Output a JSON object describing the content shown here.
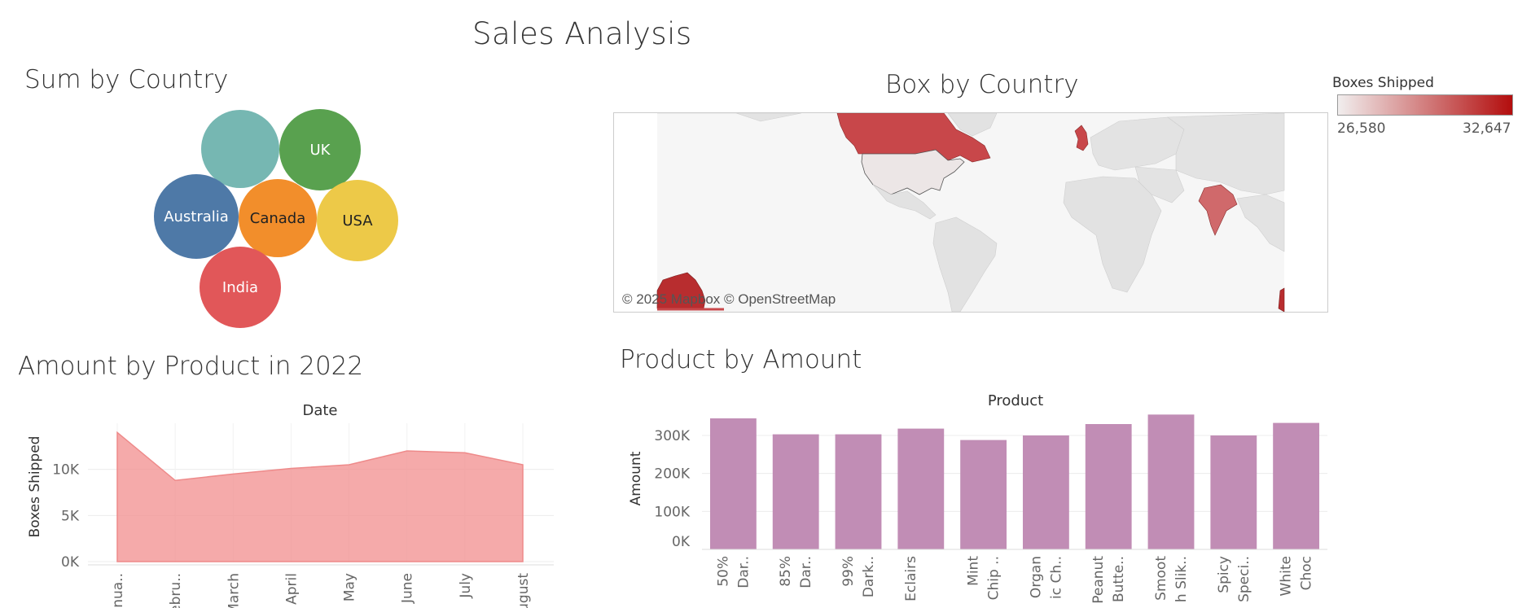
{
  "dashboard": {
    "title": "Sales Analysis"
  },
  "sheets": {
    "sum_by_country": "Sum by Country",
    "box_by_country": "Box by Country",
    "amount_by_product": "Amount by Product in 2022",
    "product_by_amount": "Product by Amount"
  },
  "legend": {
    "title": "Boxes Shipped",
    "min_label": "26,580",
    "max_label": "32,647",
    "color_low": "#f1eeee",
    "color_high": "#b30d0d"
  },
  "map": {
    "attribution": "© 2025 Mapbox © OpenStreetMap"
  },
  "chart_data": [
    {
      "type": "bubble",
      "title": "Sum by Country",
      "labels": [
        "",
        "UK",
        "Australia",
        "Canada",
        "USA",
        "India"
      ],
      "colors": [
        "#76b7b2",
        "#59a14f",
        "#4e79a7",
        "#f28e2b",
        "#edc948",
        "#e15759"
      ]
    },
    {
      "type": "choropleth",
      "title": "Box by Country",
      "legend_title": "Boxes Shipped",
      "range": [
        26580,
        32647
      ],
      "countries_highlighted": [
        "Canada",
        "USA",
        "UK",
        "India",
        "Australia",
        "New Zealand"
      ]
    },
    {
      "type": "area",
      "title": "Amount by Product in 2022",
      "header": "Date",
      "ylabel": "Boxes Shipped",
      "categories": [
        "Janua..",
        "Febru..",
        "March",
        "April",
        "May",
        "June",
        "July",
        "August"
      ],
      "values": [
        14000,
        8800,
        9500,
        10100,
        10500,
        12000,
        11800,
        10500
      ],
      "yticks": [
        "0K",
        "5K",
        "10K"
      ],
      "ylim": [
        0,
        15000
      ],
      "color": "#f28e8e"
    },
    {
      "type": "bar",
      "title": "Product by Amount",
      "header": "Product",
      "ylabel": "Amount",
      "categories": [
        [
          "50%",
          "Dar.."
        ],
        [
          "85%",
          "Dar.."
        ],
        [
          "99%",
          "Dark.."
        ],
        [
          "Eclairs",
          ""
        ],
        [
          "Mint",
          "Chip .."
        ],
        [
          "Organ",
          "ic Ch.."
        ],
        [
          "Peanut",
          "Butte.."
        ],
        [
          "Smoot",
          "h Slik.."
        ],
        [
          "Spicy",
          "Speci.."
        ],
        [
          "White",
          "Choc"
        ]
      ],
      "values": [
        345000,
        303000,
        303000,
        318000,
        288000,
        300000,
        330000,
        355000,
        300000,
        333000
      ],
      "yticks": [
        "0K",
        "100K",
        "200K",
        "300K"
      ],
      "ylim": [
        0,
        375000
      ],
      "color": "#c18db5"
    }
  ]
}
